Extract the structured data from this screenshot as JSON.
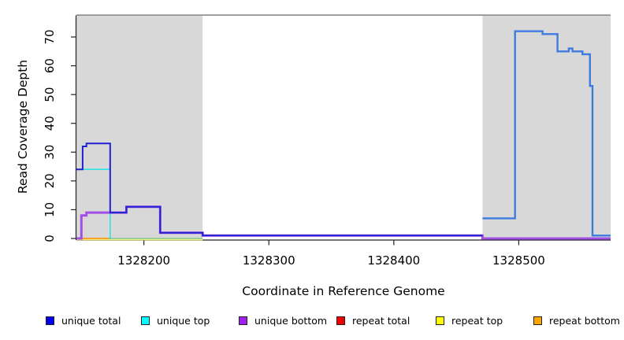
{
  "figure": {
    "y_axis": {
      "label": "Read Coverage Depth",
      "tick_values": [
        0,
        10,
        20,
        30,
        40,
        50,
        60,
        70
      ],
      "tick_labels": [
        "0",
        "10",
        "20",
        "30",
        "40",
        "50",
        "60",
        "70"
      ]
    },
    "x_axis": {
      "label": "Coordinate in Reference Genome",
      "tick_values": [
        1328200,
        1328300,
        1328400,
        1328500
      ],
      "tick_labels": [
        "1328200",
        "1328300",
        "1328400",
        "1328500"
      ]
    },
    "legend": [
      {
        "label": "unique total",
        "color": "#0000EE"
      },
      {
        "label": "unique top",
        "color": "#00FFFF"
      },
      {
        "label": "unique bottom",
        "color": "#A020F0"
      },
      {
        "label": "repeat total",
        "color": "#EE0000"
      },
      {
        "label": "repeat top",
        "color": "#FFFF00"
      },
      {
        "label": "repeat bottom",
        "color": "#FFA500"
      }
    ]
  },
  "chart_data": {
    "type": "line",
    "step_mode": "after",
    "title": "",
    "xlabel": "Coordinate in Reference Genome",
    "ylabel": "Read Coverage Depth",
    "x_range": [
      1328146,
      1328573.5
    ],
    "y_range": [
      0,
      77.5
    ],
    "grid": false,
    "legend_position": "bottom",
    "highlight_regions": {
      "color": "#D8D8D8",
      "top_border_color": "#8A8A8A",
      "spans": [
        [
          1328146,
          1328247
        ],
        [
          1328471,
          1328573.5
        ]
      ]
    },
    "series": [
      {
        "name": "repeat-top",
        "legend_label": "repeat top",
        "color": "#EFEF7A",
        "width": 1.6,
        "dy": 1.6,
        "steps": [
          [
            1328146,
            0
          ]
        ],
        "end": 1328247
      },
      {
        "name": "unique-top-repeat-top-overlap",
        "legend_label": "",
        "color": "#7EC88C",
        "width": 1.6,
        "steps": [
          [
            1328173,
            0
          ]
        ],
        "end": 1328247
      },
      {
        "name": "repeat-bottom",
        "legend_label": "repeat bottom",
        "color": "#FF9912",
        "width": 1.8,
        "steps": [
          [
            1328150,
            0
          ]
        ],
        "end": 1328173
      },
      {
        "name": "repeat-total-left",
        "legend_label": "repeat total",
        "color": "#E8112D",
        "width": 1.6,
        "steps": [
          [
            1328146,
            0
          ]
        ],
        "end": 1328150
      },
      {
        "name": "repeat-total-right",
        "legend_label": "repeat total",
        "color": "#E8112D",
        "width": 1.6,
        "steps": [
          [
            1328471,
            0
          ]
        ],
        "end": 1328573.5
      },
      {
        "name": "unique-top",
        "legend_label": "unique top",
        "color": "#2EE2E2",
        "width": 1.6,
        "steps": [
          [
            1328146,
            24
          ],
          [
            1328173,
            0
          ]
        ],
        "end": 1328174
      },
      {
        "name": "unique-bottom",
        "legend_label": "unique bottom",
        "color": "#A44FE3",
        "width": 3,
        "steps": [
          [
            1328146,
            0
          ],
          [
            1328150,
            8
          ],
          [
            1328154,
            9
          ],
          [
            1328186,
            11
          ],
          [
            1328213,
            2
          ],
          [
            1328247,
            1
          ],
          [
            1328471,
            0
          ]
        ],
        "end": 1328573.5
      },
      {
        "name": "unique-total-left",
        "legend_label": "unique total",
        "color": "#2121D1",
        "width": 2,
        "steps": [
          [
            1328146,
            24
          ],
          [
            1328151,
            32
          ],
          [
            1328154,
            33
          ],
          [
            1328173,
            9
          ],
          [
            1328186,
            11
          ],
          [
            1328213,
            2
          ],
          [
            1328247,
            1
          ]
        ],
        "end": 1328471
      },
      {
        "name": "unique-total-right",
        "legend_label": "unique total",
        "color": "#3D7BE0",
        "width": 2.4,
        "steps": [
          [
            1328471,
            7
          ],
          [
            1328497,
            72
          ],
          [
            1328519,
            71
          ],
          [
            1328531,
            65
          ],
          [
            1328540,
            66
          ],
          [
            1328543,
            65
          ],
          [
            1328551,
            64
          ],
          [
            1328557,
            53
          ],
          [
            1328559,
            1
          ]
        ],
        "end": 1328573.5
      }
    ]
  }
}
